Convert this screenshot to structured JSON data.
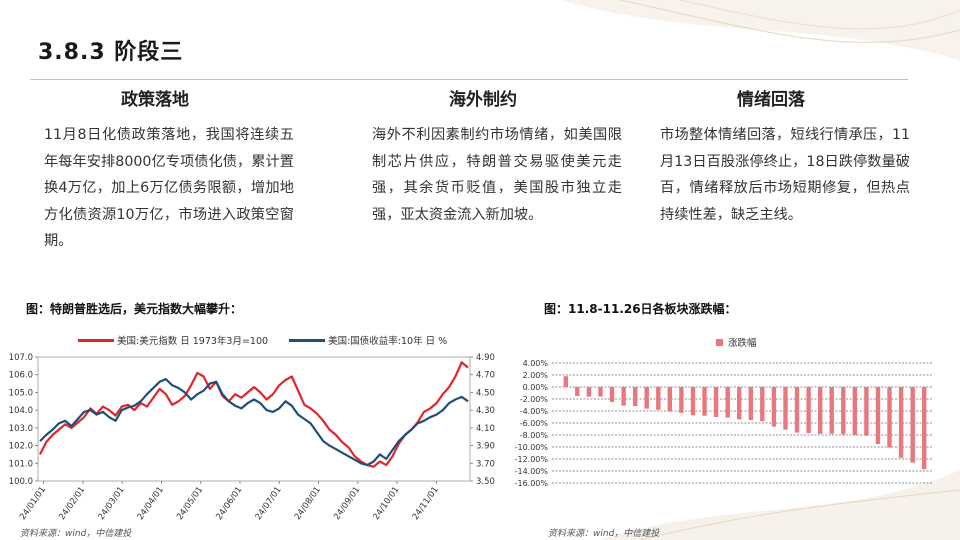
{
  "page": {
    "title": "3.8.3 阶段三",
    "columns": [
      {
        "heading": "政策落地",
        "body": "11月8日化债政策落地，我国将连续五年每年安排8000亿专项债化债，累计置换4万亿，加上6万亿债务限额，增加地方化债资源10万亿，市场进入政策空窗期。"
      },
      {
        "heading": "海外制约",
        "body": "海外不利因素制约市场情绪，如美国限制芯片供应，特朗普交易驱使美元走强，其余货币贬值，美国股市独立走强，亚太资金流入新加坡。"
      },
      {
        "heading": "情绪回落",
        "body": "市场整体情绪回落，短线行情承压，11月13日百股涨停终止，18日跌停数量破百，情绪释放后市场短期修复，但热点持续性差，缺乏主线。"
      }
    ],
    "figure1_title": "图：特朗普胜选后，美元指数大幅攀升：",
    "figure2_title": "图：11.8-11.26日各板块涨跌幅：",
    "source1": "资料来源：wind，中信建投",
    "source2": "资料来源：wind，中信建投"
  },
  "colors": {
    "dollar_index": "#e0262b",
    "treasury_yield": "#1f4e79",
    "bar": "#e8777f"
  },
  "chart_data": [
    {
      "type": "line",
      "series": [
        {
          "name": "美国:美元指数 日 1973年3月=100",
          "axis": "left",
          "values": [
            101.5,
            102.2,
            102.6,
            102.9,
            103.2,
            103.0,
            103.3,
            103.6,
            104.1,
            103.8,
            104.2,
            104.0,
            103.7,
            104.2,
            104.3,
            104.0,
            104.4,
            104.2,
            104.7,
            105.2,
            104.9,
            104.3,
            104.5,
            104.8,
            105.4,
            106.1,
            105.9,
            105.2,
            105.6,
            104.8,
            104.5,
            104.9,
            104.7,
            105.0,
            105.3,
            105.0,
            104.6,
            104.9,
            105.4,
            105.7,
            105.9,
            105.1,
            104.3,
            104.1,
            103.8,
            103.4,
            102.9,
            102.6,
            102.2,
            101.9,
            101.4,
            101.1,
            100.9,
            100.8,
            101.1,
            100.9,
            101.4,
            102.1,
            102.6,
            102.9,
            103.3,
            103.9,
            104.1,
            104.4,
            104.9,
            105.3,
            105.9,
            106.7,
            106.4
          ]
        },
        {
          "name": "美国:国债收益率:10年 日 %",
          "axis": "right",
          "values": [
            3.95,
            4.02,
            4.08,
            4.15,
            4.18,
            4.12,
            4.2,
            4.28,
            4.3,
            4.25,
            4.28,
            4.22,
            4.18,
            4.3,
            4.33,
            4.35,
            4.4,
            4.48,
            4.55,
            4.62,
            4.65,
            4.58,
            4.55,
            4.5,
            4.42,
            4.48,
            4.52,
            4.6,
            4.62,
            4.48,
            4.4,
            4.35,
            4.32,
            4.38,
            4.42,
            4.38,
            4.3,
            4.28,
            4.32,
            4.4,
            4.35,
            4.25,
            4.2,
            4.15,
            4.05,
            3.95,
            3.9,
            3.86,
            3.82,
            3.78,
            3.74,
            3.7,
            3.68,
            3.72,
            3.8,
            3.75,
            3.85,
            3.95,
            4.02,
            4.08,
            4.15,
            4.18,
            4.22,
            4.25,
            4.3,
            4.38,
            4.42,
            4.45,
            4.4
          ]
        }
      ],
      "x_tick_labels": [
        "24/01/01",
        "24/02/01",
        "24/03/01",
        "24/04/01",
        "24/05/01",
        "24/06/01",
        "24/07/01",
        "24/08/01",
        "24/09/01",
        "24/10/01",
        "24/11/01"
      ],
      "y_left_ticks": [
        "107.0",
        "106.0",
        "105.0",
        "104.0",
        "103.0",
        "102.0",
        "101.0",
        "100.0"
      ],
      "y_left_range": [
        100,
        107
      ],
      "y_right_ticks": [
        "4.90",
        "4.70",
        "4.50",
        "4.30",
        "4.10",
        "3.90",
        "3.70",
        "3.50"
      ],
      "y_right_range": [
        3.5,
        4.9
      ],
      "legend_position": "top"
    },
    {
      "type": "bar",
      "series": [
        {
          "name": "涨跌幅",
          "values": [
            1.8,
            -1.5,
            -1.6,
            -1.6,
            -2.5,
            -3.1,
            -3.2,
            -3.6,
            -3.8,
            -4.1,
            -4.3,
            -4.7,
            -4.8,
            -5.0,
            -5.1,
            -5.4,
            -5.5,
            -5.7,
            -6.6,
            -7.1,
            -7.6,
            -7.7,
            -7.8,
            -7.8,
            -7.9,
            -8.0,
            -8.1,
            -9.5,
            -10.1,
            -11.8,
            -12.6,
            -13.7
          ]
        }
      ],
      "y_tick_labels": [
        "4.00%",
        "2.00%",
        "0.00%",
        "-2.00%",
        "-4.00%",
        "-6.00%",
        "-8.00%",
        "-10.00%",
        "-12.00%",
        "-14.00%",
        "-16.00%"
      ],
      "y_range": [
        -16,
        4
      ],
      "grid": true,
      "legend_position": "top"
    }
  ]
}
